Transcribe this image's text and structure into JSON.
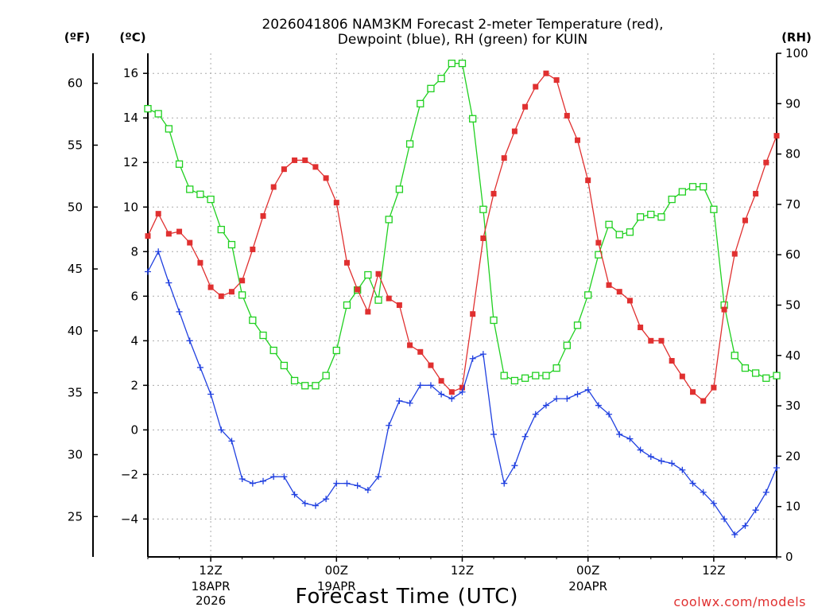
{
  "chart_data": {
    "type": "line",
    "title_line1": "2026041806 NAM3KM Forecast 2-meter Temperature (red),",
    "title_line2": "Dewpoint (blue), RH (green) for KUIN",
    "unit_f": "(ºF)",
    "unit_c": "(ºC)",
    "unit_rh": "(RH)",
    "xlabel": "Forecast Time (UTC)",
    "credit": "coolwx.com/models",
    "x_ticks": [
      {
        "hour": 6,
        "label1": "12Z",
        "label2": "18APR",
        "label3": "2026"
      },
      {
        "hour": 18,
        "label1": "00Z",
        "label2": "19APR",
        "label3": ""
      },
      {
        "hour": 30,
        "label1": "12Z",
        "label2": "",
        "label3": ""
      },
      {
        "hour": 42,
        "label1": "00Z",
        "label2": "20APR",
        "label3": ""
      },
      {
        "hour": 54,
        "label1": "12Z",
        "label2": "",
        "label3": ""
      }
    ],
    "x_range": [
      0,
      60
    ],
    "celsius_range": [
      -5.7,
      16.9
    ],
    "celsius_ticks": [
      "-4",
      "-2",
      "0",
      "2",
      "4",
      "6",
      "8",
      "10",
      "12",
      "14",
      "16"
    ],
    "fahrenheit_ticks": [
      "25",
      "30",
      "35",
      "40",
      "45",
      "50",
      "55",
      "60"
    ],
    "rh_range": [
      0,
      100
    ],
    "rh_ticks": [
      "0",
      "10",
      "20",
      "30",
      "40",
      "50",
      "60",
      "70",
      "80",
      "90",
      "100"
    ],
    "series": [
      {
        "name": "Temperature",
        "color": "#e03030",
        "marker": "filled-square",
        "unit": "C",
        "values": [
          8.7,
          9.7,
          8.8,
          8.9,
          8.4,
          7.5,
          6.4,
          6.0,
          6.2,
          6.7,
          8.1,
          9.6,
          10.9,
          11.7,
          12.1,
          12.1,
          11.8,
          11.3,
          10.2,
          7.5,
          6.3,
          5.3,
          7.0,
          5.9,
          5.6,
          3.8,
          3.5,
          2.9,
          2.2,
          1.7,
          1.9,
          5.2,
          8.6,
          10.6,
          12.2,
          13.4,
          14.5,
          15.4,
          16.0,
          15.7,
          14.1,
          13.0,
          11.2,
          8.4,
          6.5,
          6.2,
          5.8,
          4.6,
          4.0,
          4.0,
          3.1,
          2.4,
          1.7,
          1.3,
          1.9,
          5.4,
          7.9,
          9.4,
          10.6,
          12.0,
          13.2
        ]
      },
      {
        "name": "Dewpoint",
        "color": "#2040e0",
        "marker": "plus",
        "unit": "C",
        "values": [
          7.1,
          8.0,
          6.6,
          5.3,
          4.0,
          2.8,
          1.6,
          0.0,
          -0.5,
          -2.2,
          -2.4,
          -2.3,
          -2.1,
          -2.1,
          -2.9,
          -3.3,
          -3.4,
          -3.1,
          -2.4,
          -2.4,
          -2.5,
          -2.7,
          -2.1,
          0.2,
          1.3,
          1.2,
          2.0,
          2.0,
          1.6,
          1.4,
          1.7,
          3.2,
          3.4,
          -0.2,
          -2.4,
          -1.6,
          -0.3,
          0.7,
          1.1,
          1.4,
          1.4,
          1.6,
          1.8,
          1.1,
          0.7,
          -0.2,
          -0.4,
          -0.9,
          -1.2,
          -1.4,
          -1.5,
          -1.8,
          -2.4,
          -2.8,
          -3.3,
          -4.0,
          -4.7,
          -4.3,
          -3.6,
          -2.8,
          -1.7
        ]
      },
      {
        "name": "RH",
        "color": "#20d020",
        "marker": "open-square",
        "unit": "%",
        "values": [
          89,
          88,
          85,
          78,
          73,
          72,
          71,
          65,
          62,
          52,
          47,
          44,
          41,
          38,
          35,
          34,
          34,
          36,
          41,
          50,
          53,
          56,
          51,
          67,
          73,
          82,
          90,
          93,
          95,
          98,
          98,
          87,
          69,
          47,
          36,
          35,
          35.5,
          36,
          36,
          37.5,
          42,
          46,
          52,
          60,
          66,
          64,
          64.5,
          67.5,
          68,
          67.5,
          71,
          72.5,
          73.5,
          73.5,
          69,
          50,
          40,
          37.5,
          36.5,
          35.5,
          36
        ]
      }
    ]
  }
}
